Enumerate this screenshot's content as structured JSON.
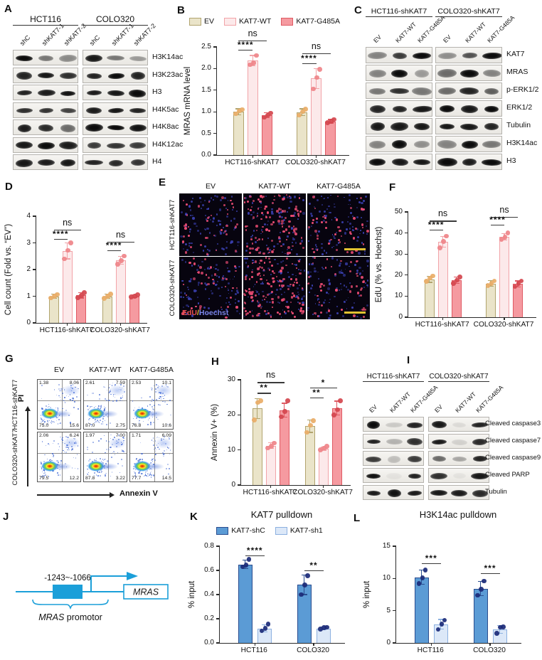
{
  "panels": {
    "A": {
      "letter": "A",
      "groups": [
        "HCT116",
        "COLO320"
      ],
      "lanes": [
        "shC",
        "shKAT7-1",
        "shKAT7-2"
      ],
      "rows": [
        {
          "label": "H3K14ac",
          "bands": [
            0.95,
            0.5,
            0.42,
            0.9,
            0.5,
            0.35
          ]
        },
        {
          "label": "H3K23ac",
          "bands": [
            0.85,
            0.9,
            0.8,
            0.85,
            0.95,
            0.85
          ]
        },
        {
          "label": "H3",
          "bands": [
            0.85,
            0.88,
            0.92,
            0.88,
            0.9,
            0.95
          ]
        },
        {
          "label": "H4K5ac",
          "bands": [
            0.8,
            0.78,
            0.72,
            0.88,
            0.9,
            0.85
          ]
        },
        {
          "label": "H4K8ac",
          "bands": [
            0.88,
            0.82,
            0.55,
            0.95,
            0.95,
            0.92
          ]
        },
        {
          "label": "H4K12ac",
          "bands": [
            0.9,
            0.95,
            0.88,
            0.75,
            0.78,
            0.75
          ]
        },
        {
          "label": "H4",
          "bands": [
            0.9,
            0.88,
            0.9,
            0.85,
            0.82,
            0.78
          ]
        }
      ]
    },
    "B": {
      "letter": "B",
      "type": "bar",
      "legend": true,
      "ylabel": "MRAS mRNA level",
      "ymax": 2.5,
      "yticks": [
        "0.0",
        "0.5",
        "1.0",
        "1.5",
        "2.0",
        "2.5"
      ],
      "series": [
        {
          "name": "EV",
          "fill": "#eae4c9",
          "stroke": "#b1a46e",
          "dot": "#e9ad67"
        },
        {
          "name": "KAT7-WT",
          "fill": "#fce9ea",
          "stroke": "#f2a3a8",
          "dot": "#ef8489"
        },
        {
          "name": "KAT7-G485A",
          "fill": "#f59aa0",
          "stroke": "#df5a63",
          "dot": "#d4464e"
        }
      ],
      "groups": [
        {
          "label": "HCT116-shKAT7",
          "values": [
            1.0,
            2.18,
            0.92
          ],
          "errs": [
            0.07,
            0.12,
            0.06
          ],
          "dots": [
            [
              0.95,
              1.02,
              1.05
            ],
            [
              2.09,
              2.13,
              2.3
            ],
            [
              0.87,
              0.92,
              0.97
            ]
          ]
        },
        {
          "label": "COLO320-shKAT7",
          "values": [
            0.99,
            1.77,
            0.78
          ],
          "errs": [
            0.08,
            0.23,
            0.04
          ],
          "dots": [
            [
              0.92,
              1.0,
              1.06
            ],
            [
              1.53,
              1.79,
              1.98
            ],
            [
              0.75,
              0.78,
              0.82
            ]
          ]
        }
      ],
      "sig": [
        {
          "g": 0,
          "a": 0,
          "b": 1,
          "label": "****",
          "y": 2.44
        },
        {
          "g": 0,
          "a": 0,
          "b": 2,
          "label": "ns",
          "y": 2.65
        },
        {
          "g": 1,
          "a": 0,
          "b": 1,
          "label": "****",
          "y": 2.12
        },
        {
          "g": 1,
          "a": 0,
          "b": 2,
          "label": "ns",
          "y": 2.36
        }
      ]
    },
    "C": {
      "letter": "C",
      "groups": [
        "HCT116-shKAT7",
        "COLO320-shKAT7"
      ],
      "lanes": [
        "EV",
        "KAT7-WT",
        "KAT7-G485A"
      ],
      "rows": [
        {
          "label": "KAT7",
          "bands": [
            0.45,
            0.75,
            0.95,
            0.4,
            0.65,
            0.95
          ]
        },
        {
          "label": "MRAS",
          "bands": [
            0.45,
            0.95,
            0.35,
            0.55,
            0.95,
            0.45
          ]
        },
        {
          "label": "p-ERK1/2",
          "bands": [
            0.5,
            0.8,
            0.5,
            0.55,
            0.85,
            0.6
          ]
        },
        {
          "label": "ERK1/2",
          "bands": [
            0.85,
            0.85,
            0.9,
            0.95,
            0.9,
            0.95
          ]
        },
        {
          "label": "Tubulin",
          "bands": [
            0.9,
            0.9,
            0.9,
            0.9,
            0.9,
            0.85
          ]
        },
        {
          "label": "H3K14ac",
          "bands": [
            0.45,
            0.95,
            0.4,
            0.45,
            0.95,
            0.5
          ]
        },
        {
          "label": "H3",
          "bands": [
            0.95,
            0.9,
            0.9,
            0.95,
            0.88,
            0.95
          ]
        }
      ]
    },
    "D": {
      "letter": "D",
      "type": "bar",
      "legend": false,
      "ylabel": "Cell count (Fold vs. “EV”)",
      "ymax": 4,
      "yticks": [
        "0",
        "1",
        "2",
        "3",
        "4"
      ],
      "series": [
        {
          "name": "EV",
          "fill": "#eae4c9",
          "stroke": "#b1a46e",
          "dot": "#e9ad67"
        },
        {
          "name": "KAT7-WT",
          "fill": "#fce9ea",
          "stroke": "#f2a3a8",
          "dot": "#ef8489"
        },
        {
          "name": "KAT7-G485A",
          "fill": "#f59aa0",
          "stroke": "#df5a63",
          "dot": "#d4464e"
        }
      ],
      "groups": [
        {
          "label": "HCT116-shKAT7",
          "values": [
            1.0,
            2.7,
            1.03
          ],
          "errs": [
            0.08,
            0.3,
            0.1
          ],
          "dots": [
            [
              0.93,
              1.0,
              1.07
            ],
            [
              2.4,
              2.72,
              3.0
            ],
            [
              0.95,
              1.02,
              1.13
            ]
          ]
        },
        {
          "label": "COLO320-shKAT7",
          "values": [
            1.0,
            2.35,
            1.0
          ],
          "errs": [
            0.08,
            0.15,
            0.05
          ],
          "dots": [
            [
              0.92,
              1.0,
              1.08
            ],
            [
              2.2,
              2.33,
              2.5
            ],
            [
              0.97,
              1.0,
              1.05
            ]
          ]
        }
      ],
      "sig": [
        {
          "g": 0,
          "a": 0,
          "b": 1,
          "label": "****",
          "y": 3.16
        },
        {
          "g": 0,
          "a": 0,
          "b": 2,
          "label": "ns",
          "y": 3.5
        },
        {
          "g": 1,
          "a": 0,
          "b": 1,
          "label": "****",
          "y": 2.72
        },
        {
          "g": 1,
          "a": 0,
          "b": 2,
          "label": "ns",
          "y": 3.05
        }
      ]
    },
    "E": {
      "letter": "E",
      "cols": [
        "EV",
        "KAT7-WT",
        "KAT7-G485A"
      ],
      "rows": [
        "HCT116-shKAT7",
        "COLO320-shKAT7"
      ],
      "overlay": {
        "edu": "EdU",
        "slash": "/",
        "hoechst": "Hoechst"
      },
      "overlay_colors": {
        "edu": "#e8504f",
        "slash": "#e2c231",
        "hoechst": "#7b86e8"
      },
      "red_counts": [
        [
          38,
          110,
          46
        ],
        [
          40,
          125,
          44
        ]
      ],
      "blue_count": 95
    },
    "F": {
      "letter": "F",
      "type": "bar",
      "legend": false,
      "ylabel": "EdU (% vs. Hoechst)",
      "ymax": 50,
      "yticks": [
        "0",
        "10",
        "20",
        "30",
        "40",
        "50"
      ],
      "series": [
        {
          "name": "EV",
          "fill": "#eae4c9",
          "stroke": "#b1a46e",
          "dot": "#e9ad67"
        },
        {
          "name": "KAT7-WT",
          "fill": "#fce9ea",
          "stroke": "#f2a3a8",
          "dot": "#ef8489"
        },
        {
          "name": "KAT7-G485A",
          "fill": "#f59aa0",
          "stroke": "#df5a63",
          "dot": "#d4464e"
        }
      ],
      "groups": [
        {
          "label": "HCT116-shKAT7",
          "values": [
            18,
            35.8,
            17.5
          ],
          "errs": [
            1.5,
            2.6,
            1.5
          ],
          "dots": [
            [
              17,
              18.5,
              19.5
            ],
            [
              33,
              36,
              38.5
            ],
            [
              16,
              17.5,
              19
            ]
          ]
        },
        {
          "label": "COLO320-shKAT7",
          "values": [
            16,
            38.2,
            15.8
          ],
          "errs": [
            1.3,
            1.5,
            1.4
          ],
          "dots": [
            [
              15,
              16,
              17.3
            ],
            [
              37,
              38,
              40
            ],
            [
              14.5,
              16,
              17.2
            ]
          ]
        }
      ],
      "sig": [
        {
          "g": 0,
          "a": 0,
          "b": 1,
          "label": "****",
          "y": 41.5
        },
        {
          "g": 0,
          "a": 0,
          "b": 2,
          "label": "ns",
          "y": 45.8
        },
        {
          "g": 1,
          "a": 0,
          "b": 1,
          "label": "****",
          "y": 44
        },
        {
          "g": 1,
          "a": 0,
          "b": 2,
          "label": "ns",
          "y": 47.8
        }
      ]
    },
    "G": {
      "letter": "G",
      "cols": [
        "EV",
        "KAT7-WT",
        "KAT7-G485A"
      ],
      "rows": [
        "HCT116-shKAT7",
        "COLO320-shKAT7"
      ],
      "xlabel": "Annexin V",
      "ylabel": "PI",
      "plots": [
        [
          {
            "ul": "1.38",
            "ur": "8.06",
            "ll": "75.0",
            "lr": "15.6"
          },
          {
            "ul": "2.61",
            "ur": "7.59",
            "ll": "87.0",
            "lr": "2.75"
          },
          {
            "ul": "2.53",
            "ur": "10.1",
            "ll": "76.8",
            "lr": "10.6"
          }
        ],
        [
          {
            "ul": "2.06",
            "ur": "6.24",
            "ll": "79.5",
            "lr": "12.2"
          },
          {
            "ul": "1.97",
            "ur": "7.00",
            "ll": "87.8",
            "lr": "3.22"
          },
          {
            "ul": "1.71",
            "ur": "6.09",
            "ll": "77.7",
            "lr": "14.5"
          }
        ]
      ]
    },
    "H": {
      "letter": "H",
      "type": "bar",
      "legend": false,
      "ylabel": "Annexin V+ (%)",
      "ymax": 30,
      "yticks": [
        "0",
        "10",
        "20",
        "30"
      ],
      "series": [
        {
          "name": "EV",
          "fill": "#eae4c9",
          "stroke": "#b1a46e",
          "dot": "#e9ad67"
        },
        {
          "name": "KAT7-WT",
          "fill": "#fce9ea",
          "stroke": "#f2a3a8",
          "dot": "#ef8489"
        },
        {
          "name": "KAT7-G485A",
          "fill": "#f59aa0",
          "stroke": "#df5a63",
          "dot": "#d4464e"
        }
      ],
      "groups": [
        {
          "label": "HCT116-shKAT7",
          "values": [
            21.8,
            11.2,
            21.3
          ],
          "errs": [
            2.8,
            0.8,
            2.0
          ],
          "dots": [
            [
              18.5,
              23.5,
              24
            ],
            [
              10.5,
              11,
              12
            ],
            [
              19.5,
              21,
              24
            ]
          ]
        },
        {
          "label": "COLO320-shKAT7",
          "values": [
            16.8,
            10.4,
            21.9
          ],
          "errs": [
            1.8,
            0.5,
            2.0
          ],
          "dots": [
            [
              15,
              17,
              18.3
            ],
            [
              10,
              10.5,
              11
            ],
            [
              20,
              21.5,
              24
            ]
          ]
        }
      ],
      "sig": [
        {
          "g": 0,
          "a": 0,
          "b": 1,
          "label": "**",
          "y": 26.3
        },
        {
          "g": 0,
          "a": 0,
          "b": 2,
          "label": "ns",
          "y": 29.3
        },
        {
          "g": 1,
          "a": 0,
          "b": 1,
          "label": "**",
          "y": 25
        },
        {
          "g": 1,
          "a": 0,
          "b": 2,
          "label": "*",
          "y": 27.8
        }
      ]
    },
    "I": {
      "letter": "I",
      "groups": [
        "HCT116-shKAT7",
        "COLO320-shKAT7"
      ],
      "lanes": [
        "EV",
        "KAT7-WT",
        "KAT7-G485A"
      ],
      "rows": [
        {
          "label": "Cleaved caspase3",
          "bands": [
            0.95,
            0.15,
            0.85,
            0.9,
            0.08,
            0.85
          ]
        },
        {
          "label": "Cleaved caspase7",
          "bands": [
            0.85,
            0.25,
            0.8,
            0.88,
            0.12,
            0.82
          ]
        },
        {
          "label": "Cleaved caspase9",
          "bands": [
            0.75,
            0.2,
            0.75,
            0.55,
            0.3,
            0.85
          ]
        },
        {
          "label": "Cleaved PARP",
          "bands": [
            0.92,
            0.05,
            0.85,
            0.8,
            0.05,
            0.9
          ]
        },
        {
          "label": "Tubulin",
          "bands": [
            0.88,
            0.92,
            0.88,
            0.9,
            0.88,
            0.82
          ]
        }
      ]
    },
    "J": {
      "letter": "J",
      "region_label": "-1243~-1066",
      "gene_label": "MRAS",
      "promoter_label": {
        "gene": "MRAS",
        "rest": " promotor"
      },
      "diagram_color": "#1b9fd9"
    },
    "K": {
      "letter": "K",
      "type": "bar",
      "title": "KAT7 pulldown",
      "legend": true,
      "ylabel": "% input",
      "ymax": 0.8,
      "yticks": [
        "0.0",
        "0.2",
        "0.4",
        "0.6",
        "0.8"
      ],
      "series": [
        {
          "name": "KAT7-shC",
          "fill": "#5b9bd5",
          "stroke": "#2a4d8f",
          "dot": "#1b2a78"
        },
        {
          "name": "KAT7-sh1",
          "fill": "#dce8f8",
          "stroke": "#8cb0e0",
          "dot": "#1b2a78"
        }
      ],
      "groups": [
        {
          "label": "HCT116",
          "values": [
            0.65,
            0.12
          ],
          "errs": [
            0.035,
            0.03
          ],
          "dots": [
            [
              0.63,
              0.645,
              0.69
            ],
            [
              0.1,
              0.12,
              0.155
            ]
          ]
        },
        {
          "label": "COLO320",
          "values": [
            0.48,
            0.12
          ],
          "errs": [
            0.08,
            0.012
          ],
          "dots": [
            [
              0.4,
              0.48,
              0.555
            ],
            [
              0.115,
              0.125,
              0.13
            ]
          ]
        }
      ],
      "sig": [
        {
          "g": 0,
          "a": 0,
          "b": 1,
          "label": "****",
          "y": 0.725
        },
        {
          "g": 1,
          "a": 0,
          "b": 1,
          "label": "**",
          "y": 0.6
        }
      ]
    },
    "L": {
      "letter": "L",
      "type": "bar",
      "title": "H3K14ac pulldown",
      "legend": false,
      "ylabel": "% input",
      "ymax": 15,
      "yticks": [
        "0",
        "5",
        "10",
        "15"
      ],
      "series": [
        {
          "name": "KAT7-shC",
          "fill": "#5b9bd5",
          "stroke": "#2a4d8f",
          "dot": "#1b2a78"
        },
        {
          "name": "KAT7-sh1",
          "fill": "#dce8f8",
          "stroke": "#8cb0e0",
          "dot": "#1b2a78"
        }
      ],
      "groups": [
        {
          "label": "HCT116",
          "values": [
            10.2,
            2.9
          ],
          "errs": [
            1.1,
            0.75
          ],
          "dots": [
            [
              9.2,
              10.1,
              11.3
            ],
            [
              2.1,
              2.9,
              3.5
            ]
          ]
        },
        {
          "label": "COLO320",
          "values": [
            8.4,
            2.1
          ],
          "errs": [
            1.1,
            0.6
          ],
          "dots": [
            [
              7.4,
              8.3,
              9.6
            ],
            [
              1.5,
              2.4,
              2.5
            ]
          ]
        }
      ],
      "sig": [
        {
          "g": 0,
          "a": 0,
          "b": 1,
          "label": "***",
          "y": 12.4
        },
        {
          "g": 1,
          "a": 0,
          "b": 1,
          "label": "***",
          "y": 10.8
        }
      ]
    }
  }
}
